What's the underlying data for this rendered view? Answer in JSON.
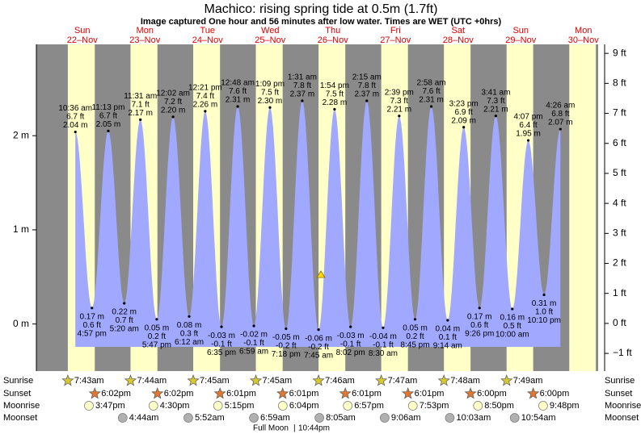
{
  "chart_data": {
    "type": "tide",
    "title": "Machico: rising  spring tide at 0.5m (1.7ft)",
    "subtitle": "Image captured One hour and 56 minutes after low water. Times are WET (UTC +0hrs)",
    "ylim": [
      -0.5,
      2.97
    ],
    "yticks": [
      {
        "value": 0,
        "label": "0 m"
      },
      {
        "value": 1,
        "label": "1 m"
      },
      {
        "value": 2,
        "label": "2 m"
      }
    ],
    "y2lim": [
      -1.59,
      9.3
    ],
    "y2ticks": [
      {
        "value": -1,
        "label": "−1 ft"
      },
      {
        "value": 0,
        "label": "0 ft"
      },
      {
        "value": 1,
        "label": "1 ft"
      },
      {
        "value": 2,
        "label": "2 ft"
      },
      {
        "value": 3,
        "label": "3 ft"
      },
      {
        "value": 4,
        "label": "4 ft"
      },
      {
        "value": 5,
        "label": "5 ft"
      },
      {
        "value": 6,
        "label": "6 ft"
      },
      {
        "value": 7,
        "label": "7 ft"
      },
      {
        "value": 8,
        "label": "8 ft"
      },
      {
        "value": 9,
        "label": "9 ft"
      }
    ],
    "color": "#a0a8ff",
    "tides": {
      "times": [
        "10:36 am",
        "4:57 pm",
        "11:13 pm",
        "5:20 am",
        "11:31 am",
        "5:47 pm",
        "12:02 am",
        "6:12 am",
        "12:21 pm",
        "6:35 pm",
        "12:48 am",
        "6:59 am",
        "1:09 pm",
        "7:18 pm",
        "1:31 am",
        "7:45 am",
        "1:54 pm",
        "8:02 pm",
        "2:15 am",
        "8:30 am",
        "2:39 pm",
        "8:45 pm",
        "2:58 am",
        "9:14 am",
        "3:23 pm",
        "9:26 pm",
        "3:41 am",
        "10:00 am",
        "4:07 pm",
        "10:10 pm",
        "4:26 am"
      ],
      "values": [
        2.04,
        0.17,
        2.05,
        0.22,
        2.17,
        0.05,
        2.2,
        0.08,
        2.26,
        -0.03,
        2.31,
        -0.02,
        2.3,
        -0.05,
        2.37,
        -0.06,
        2.28,
        -0.03,
        2.37,
        -0.04,
        2.21,
        0.05,
        2.31,
        0.04,
        2.09,
        0.17,
        2.21,
        0.16,
        1.95,
        0.31,
        2.07
      ],
      "value_labels": [
        "2.04 m",
        "0.17 m",
        "2.05 m",
        "0.22 m",
        "2.17 m",
        "0.05 m",
        "2.20 m",
        "0.08 m",
        "2.26 m",
        "-0.03 m",
        "2.31 m",
        "-0.02 m",
        "2.30 m",
        "-0.05 m",
        "2.37 m",
        "-0.06 m",
        "2.28 m",
        "-0.03 m",
        "2.37 m",
        "-0.04 m",
        "2.21 m",
        "0.05 m",
        "2.31 m",
        "0.04 m",
        "2.09 m",
        "0.17 m",
        "2.21 m",
        "0.16 m",
        "1.95 m",
        "0.31 m",
        "2.07 m"
      ],
      "feet_labels": [
        "6.7 ft",
        "0.6 ft",
        "6.7 ft",
        "0.7 ft",
        "7.1 ft",
        "0.2 ft",
        "7.2 ft",
        "0.3 ft",
        "7.4 ft",
        "-0.1 ft",
        "7.6 ft",
        "-0.1 ft",
        "7.5 ft",
        "-0.2 ft",
        "7.8 ft",
        "-0.2 ft",
        "7.5 ft",
        "-0.1 ft",
        "7.8 ft",
        "-0.1 ft",
        "7.3 ft",
        "0.2 ft",
        "7.6 ft",
        "0.1 ft",
        "6.9 ft",
        "0.6 ft",
        "7.3 ft",
        "0.5 ft",
        "6.4 ft",
        "1.0 ft",
        "6.8 ft"
      ]
    },
    "days": [
      {
        "weekday": "Sun",
        "date": "22–Nov",
        "sunrise": "7:43am",
        "sunset": "6:02pm",
        "moonrise": "3:47pm",
        "moonset": null
      },
      {
        "weekday": "Mon",
        "date": "23–Nov",
        "sunrise": "7:44am",
        "sunset": "6:02pm",
        "moonrise": "4:30pm",
        "moonset": "4:44am"
      },
      {
        "weekday": "Tue",
        "date": "24–Nov",
        "sunrise": "7:45am",
        "sunset": "6:01pm",
        "moonrise": "5:15pm",
        "moonset": "5:52am"
      },
      {
        "weekday": "Wed",
        "date": "25–Nov",
        "sunrise": "7:45am",
        "sunset": "6:01pm",
        "moonrise": "6:04pm",
        "moonset": "6:59am"
      },
      {
        "weekday": "Thu",
        "date": "26–Nov",
        "sunrise": "7:46am",
        "sunset": "6:01pm",
        "moonrise": "6:57pm",
        "moonset": "8:05am"
      },
      {
        "weekday": "Fri",
        "date": "27–Nov",
        "sunrise": "7:47am",
        "sunset": "6:01pm",
        "moonrise": "7:53pm",
        "moonset": "9:06am"
      },
      {
        "weekday": "Sat",
        "date": "28–Nov",
        "sunrise": "7:48am",
        "sunset": "6:00pm",
        "moonrise": "8:50pm",
        "moonset": "10:03am"
      },
      {
        "weekday": "Sun",
        "date": "29–Nov",
        "sunrise": "7:49am",
        "sunset": "6:00pm",
        "moonrise": "9:48pm",
        "moonset": "10:54am"
      },
      {
        "weekday": "Mon",
        "date": "30–Nov",
        "sunrise": null,
        "sunset": null,
        "moonrise": null,
        "moonset": null
      }
    ],
    "row_labels": [
      "Sunrise",
      "Sunset",
      "Moonrise",
      "Moonset"
    ],
    "moon_phase": "Full Moon",
    "moon_phase_time": "10:44pm"
  }
}
